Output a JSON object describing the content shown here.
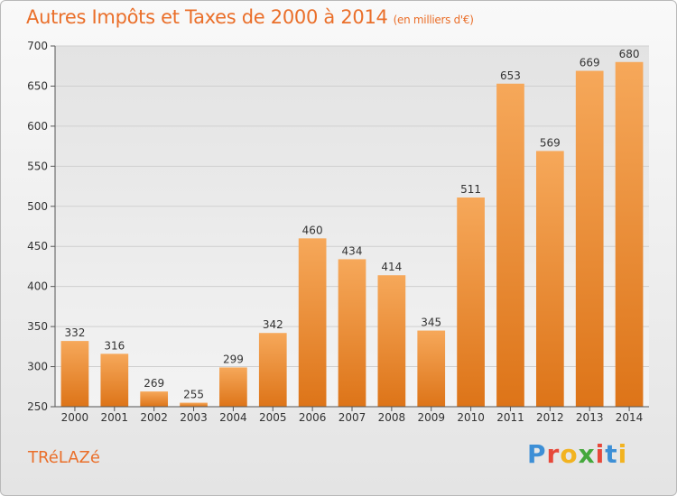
{
  "header": {
    "title": "Autres Impôts et Taxes de 2000 à 2014",
    "unit": "(en milliers d'€)"
  },
  "footer": {
    "commune": "TRéLAZé",
    "logo_text": "Proxiti",
    "logo_colors": [
      "#3d8fd6",
      "#e7483a",
      "#f2b320",
      "#45a83c",
      "#e7483a",
      "#3d8fd6",
      "#f2b320"
    ]
  },
  "colors": {
    "accent": "#ea6f2a",
    "bar_light": "#f6a85a",
    "bar_dark": "#dd7418",
    "axis": "#555555",
    "grid": "#cfcfcf"
  },
  "chart_data": {
    "type": "bar",
    "title": "Autres Impôts et Taxes de 2000 à 2014",
    "subtitle": "(en milliers d'€)",
    "xlabel": "",
    "ylabel": "",
    "categories": [
      "2000",
      "2001",
      "2002",
      "2003",
      "2004",
      "2005",
      "2006",
      "2007",
      "2008",
      "2009",
      "2010",
      "2011",
      "2012",
      "2013",
      "2014"
    ],
    "values": [
      332,
      316,
      269,
      255,
      299,
      342,
      460,
      434,
      414,
      345,
      511,
      653,
      569,
      669,
      680
    ],
    "ylim": [
      250,
      700
    ],
    "yticks": [
      250,
      300,
      350,
      400,
      450,
      500,
      550,
      600,
      650,
      700
    ],
    "grid": true,
    "legend": "none"
  }
}
